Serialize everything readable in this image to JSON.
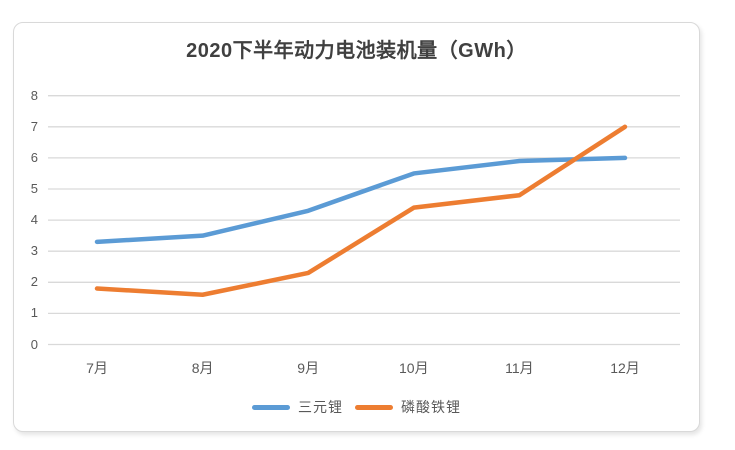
{
  "colors": {
    "background": "#ffffff",
    "card_background": "#ffffff",
    "card_border": "#d9d9d9",
    "gridline": "#d9d9d9",
    "tick_text": "#595959",
    "title_text": "#404040"
  },
  "chart_data": {
    "type": "line",
    "title": "2020下半年动力电池装机量（GWh）",
    "categories": [
      "7月",
      "8月",
      "9月",
      "10月",
      "11月",
      "12月"
    ],
    "series": [
      {
        "id": "ternary-lithium",
        "name": "三元锂",
        "color": "#5b9bd5",
        "values": [
          3.3,
          3.5,
          4.3,
          5.5,
          5.9,
          6.0
        ]
      },
      {
        "id": "lithium-iron-phosphate",
        "name": "磷酸铁锂",
        "color": "#ed7d31",
        "values": [
          1.8,
          1.6,
          2.3,
          4.4,
          4.8,
          7.0
        ]
      }
    ],
    "xlabel": "",
    "ylabel": "",
    "ylim": [
      0,
      8
    ],
    "ytick_step": 1,
    "yticks": [
      0,
      1,
      2,
      3,
      4,
      5,
      6,
      7,
      8
    ],
    "grid": "horizontal",
    "legend_position": "bottom"
  }
}
